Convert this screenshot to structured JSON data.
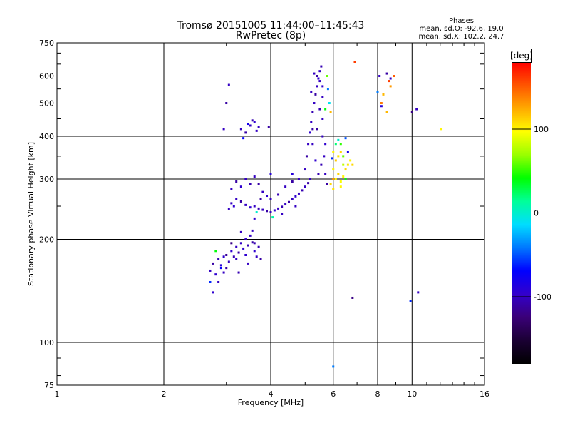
{
  "title": "Tromsø 20151005 11:44:00–11:45:43",
  "subtitle": "RwPretec (8p)",
  "info": {
    "heading": "Phases",
    "line_o": "mean, sd,O: -92.6, 19.0",
    "line_x": "mean, sd,X: 102.2, 24.7"
  },
  "colorbar": {
    "label": "[deg]",
    "min": -180,
    "max": 180,
    "ticks": [
      {
        "value": 100,
        "label": "100"
      },
      {
        "value": 0,
        "label": "0"
      },
      {
        "value": -100,
        "label": "-100"
      }
    ],
    "stops": [
      "#000000",
      "#1a0033",
      "#3a0077",
      "#3300cc",
      "#0000ff",
      "#0077ff",
      "#00ddff",
      "#00ff99",
      "#00ff00",
      "#99ff00",
      "#ffff00",
      "#ffaa00",
      "#ff5500",
      "#ff0000"
    ]
  },
  "chart_data": {
    "type": "scatter",
    "xlabel": "Frequency [MHz]",
    "ylabel": "Stationary phase Virtual Height [km]",
    "xscale": "log",
    "yscale": "log",
    "xlim": [
      1,
      16
    ],
    "ylim": [
      75,
      750
    ],
    "grid": true,
    "x_ticks": [
      {
        "value": 1,
        "label": "1"
      },
      {
        "value": 2,
        "label": "2"
      },
      {
        "value": 4,
        "label": "4"
      },
      {
        "value": 6,
        "label": "6"
      },
      {
        "value": 8,
        "label": "8"
      },
      {
        "value": 10,
        "label": "10"
      },
      {
        "value": 16,
        "label": "16"
      }
    ],
    "y_ticks": [
      {
        "value": 75,
        "label": "75"
      },
      {
        "value": 100,
        "label": "100"
      },
      {
        "value": 200,
        "label": "200"
      },
      {
        "value": 300,
        "label": "300"
      },
      {
        "value": 400,
        "label": "400"
      },
      {
        "value": 500,
        "label": "500"
      },
      {
        "value": 600,
        "label": "600"
      },
      {
        "value": 750,
        "label": "750"
      }
    ],
    "x_minor": [
      3,
      5,
      7,
      9,
      11,
      12,
      13,
      14,
      15
    ],
    "y_minor": [
      80,
      90,
      150,
      250,
      350,
      450,
      550,
      650,
      700
    ],
    "series": [
      {
        "points": [
          [
            2.7,
            162,
            -100
          ],
          [
            2.75,
            170,
            -110
          ],
          [
            2.8,
            158,
            -95
          ],
          [
            2.85,
            175,
            -105
          ],
          [
            2.9,
            168,
            -90
          ],
          [
            2.95,
            160,
            -100
          ],
          [
            3.0,
            180,
            -115
          ],
          [
            3.05,
            172,
            -100
          ],
          [
            3.1,
            185,
            -95
          ],
          [
            3.15,
            178,
            -105
          ],
          [
            3.2,
            190,
            -100
          ],
          [
            3.25,
            183,
            -110
          ],
          [
            3.3,
            195,
            -100
          ],
          [
            3.35,
            188,
            -95
          ],
          [
            3.4,
            200,
            -100
          ],
          [
            3.45,
            192,
            -105
          ],
          [
            3.5,
            205,
            -100
          ],
          [
            3.55,
            196,
            -110
          ],
          [
            3.6,
            185,
            -95
          ],
          [
            3.65,
            178,
            -100
          ],
          [
            3.7,
            190,
            -105
          ],
          [
            2.85,
            150,
            -100
          ],
          [
            3.0,
            165,
            -110
          ],
          [
            3.2,
            175,
            -100
          ],
          [
            3.4,
            180,
            -95
          ],
          [
            3.6,
            195,
            -105
          ],
          [
            2.8,
            185,
            40
          ],
          [
            2.7,
            150,
            -60
          ],
          [
            2.75,
            140,
            -95
          ],
          [
            3.3,
            210,
            -100
          ],
          [
            3.45,
            170,
            -100
          ],
          [
            3.1,
            195,
            -120
          ],
          [
            3.75,
            175,
            -110
          ],
          [
            2.95,
            178,
            -95
          ],
          [
            3.25,
            160,
            -105
          ],
          [
            3.55,
            212,
            -100
          ],
          [
            2.9,
            165,
            -70
          ],
          [
            3.1,
            255,
            -100
          ],
          [
            3.15,
            250,
            -95
          ],
          [
            3.2,
            262,
            -100
          ],
          [
            3.3,
            258,
            -110
          ],
          [
            3.4,
            252,
            -100
          ],
          [
            3.5,
            248,
            -95
          ],
          [
            3.6,
            250,
            -100
          ],
          [
            3.7,
            246,
            -105
          ],
          [
            3.8,
            244,
            -100
          ],
          [
            3.9,
            242,
            -110
          ],
          [
            4.0,
            240,
            -100
          ],
          [
            4.1,
            243,
            -95
          ],
          [
            4.2,
            246,
            -100
          ],
          [
            4.3,
            249,
            -105
          ],
          [
            4.4,
            253,
            -100
          ],
          [
            4.5,
            257,
            -110
          ],
          [
            4.6,
            262,
            -100
          ],
          [
            4.7,
            267,
            -95
          ],
          [
            4.8,
            272,
            -100
          ],
          [
            4.9,
            278,
            -105
          ],
          [
            5.0,
            285,
            -100
          ],
          [
            5.1,
            292,
            -110
          ],
          [
            3.1,
            280,
            -100
          ],
          [
            3.2,
            295,
            -110
          ],
          [
            3.3,
            285,
            -95
          ],
          [
            3.4,
            300,
            -100
          ],
          [
            3.5,
            290,
            -105
          ],
          [
            3.6,
            305,
            -100
          ],
          [
            3.7,
            290,
            -110
          ],
          [
            3.8,
            275,
            -100
          ],
          [
            3.9,
            268,
            -95
          ],
          [
            4.0,
            262,
            -100
          ],
          [
            4.2,
            270,
            -105
          ],
          [
            4.4,
            285,
            -100
          ],
          [
            4.6,
            295,
            -110
          ],
          [
            4.8,
            300,
            -100
          ],
          [
            4.0,
            310,
            -90
          ],
          [
            3.65,
            240,
            0
          ],
          [
            3.05,
            245,
            -100
          ],
          [
            3.6,
            230,
            -95
          ],
          [
            4.05,
            232,
            10
          ],
          [
            4.3,
            237,
            -100
          ],
          [
            3.75,
            262,
            -110
          ],
          [
            4.7,
            250,
            -100
          ],
          [
            5.0,
            320,
            -100
          ],
          [
            5.05,
            350,
            -110
          ],
          [
            5.1,
            380,
            -100
          ],
          [
            5.15,
            410,
            -95
          ],
          [
            5.2,
            440,
            -100
          ],
          [
            5.25,
            470,
            -105
          ],
          [
            5.3,
            500,
            -100
          ],
          [
            5.35,
            530,
            -110
          ],
          [
            5.4,
            560,
            -100
          ],
          [
            5.45,
            590,
            -95
          ],
          [
            5.5,
            620,
            -100
          ],
          [
            5.55,
            640,
            -105
          ],
          [
            5.3,
            610,
            -100
          ],
          [
            5.4,
            600,
            -110
          ],
          [
            5.5,
            580,
            -100
          ],
          [
            5.6,
            560,
            -95
          ],
          [
            5.6,
            520,
            -100
          ],
          [
            5.5,
            480,
            -105
          ],
          [
            5.6,
            450,
            -100
          ],
          [
            5.4,
            420,
            -110
          ],
          [
            5.6,
            400,
            -100
          ],
          [
            5.7,
            380,
            -95
          ],
          [
            5.65,
            350,
            -100
          ],
          [
            5.55,
            330,
            -105
          ],
          [
            5.7,
            310,
            -100
          ],
          [
            5.75,
            290,
            -110
          ],
          [
            5.2,
            540,
            -100
          ],
          [
            5.25,
            380,
            -100
          ],
          [
            5.35,
            340,
            -95
          ],
          [
            5.45,
            310,
            -105
          ],
          [
            5.15,
            300,
            -100
          ],
          [
            5.25,
            420,
            -110
          ],
          [
            5.75,
            600,
            60
          ],
          [
            5.8,
            550,
            -40
          ],
          [
            5.85,
            500,
            -10
          ],
          [
            5.7,
            480,
            40
          ],
          [
            5.9,
            470,
            120
          ],
          [
            5.9,
            290,
            110
          ],
          [
            6.0,
            280,
            105
          ],
          [
            6.1,
            300,
            100
          ],
          [
            6.2,
            310,
            110
          ],
          [
            6.3,
            295,
            95
          ],
          [
            6.4,
            305,
            100
          ],
          [
            6.5,
            320,
            110
          ],
          [
            6.6,
            330,
            105
          ],
          [
            6.7,
            340,
            100
          ],
          [
            6.8,
            330,
            110
          ],
          [
            6.0,
            320,
            100
          ],
          [
            6.1,
            340,
            115
          ],
          [
            6.2,
            350,
            105
          ],
          [
            6.0,
            360,
            100
          ],
          [
            6.3,
            360,
            110
          ],
          [
            6.1,
            380,
            20
          ],
          [
            6.3,
            380,
            50
          ],
          [
            6.4,
            350,
            60
          ],
          [
            6.2,
            390,
            0
          ],
          [
            6.5,
            395,
            -50
          ],
          [
            6.6,
            360,
            -80
          ],
          [
            6.4,
            330,
            80
          ],
          [
            5.95,
            345,
            -60
          ],
          [
            6.0,
            300,
            130
          ],
          [
            6.3,
            285,
            100
          ],
          [
            6.5,
            300,
            40
          ],
          [
            3.3,
            420,
            -100
          ],
          [
            3.4,
            410,
            -110
          ],
          [
            3.5,
            430,
            -100
          ],
          [
            3.6,
            440,
            -95
          ],
          [
            3.7,
            425,
            -100
          ],
          [
            3.55,
            445,
            -105
          ],
          [
            3.45,
            435,
            -80
          ],
          [
            3.65,
            415,
            -100
          ],
          [
            3.95,
            425,
            -110
          ],
          [
            3.35,
            395,
            -70
          ],
          [
            3.05,
            565,
            -100
          ],
          [
            3.0,
            500,
            -110
          ],
          [
            2.95,
            420,
            -100
          ],
          [
            8.1,
            600,
            -100
          ],
          [
            8.5,
            610,
            -110
          ],
          [
            8.7,
            590,
            -100
          ],
          [
            8.9,
            600,
            150
          ],
          [
            8.2,
            500,
            140
          ],
          [
            8.5,
            470,
            120
          ],
          [
            8.0,
            540,
            -40
          ],
          [
            10.0,
            470,
            -120
          ],
          [
            10.3,
            480,
            -100
          ],
          [
            6.9,
            660,
            160
          ],
          [
            12.1,
            420,
            100
          ],
          [
            8.7,
            560,
            130
          ],
          [
            8.6,
            580,
            160
          ],
          [
            8.3,
            530,
            120
          ],
          [
            8.2,
            490,
            -90
          ],
          [
            6.8,
            135,
            -120
          ],
          [
            10.4,
            140,
            -100
          ],
          [
            9.9,
            132,
            -60
          ],
          [
            6.0,
            85,
            -40
          ],
          [
            4.6,
            310,
            -90
          ]
        ]
      }
    ]
  }
}
